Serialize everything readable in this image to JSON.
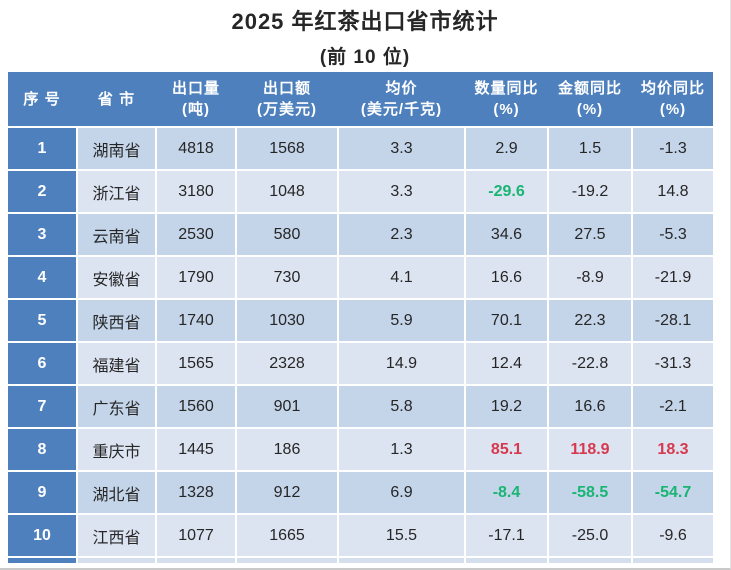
{
  "title": "2025 年红茶出口省市统计",
  "subtitle": "(前 10 位)",
  "colors": {
    "header_blue": "#4E80BD",
    "row_odd": "#C4D4E9",
    "row_even": "#DDE4F1",
    "text_dark": "#262626",
    "positive_red": "#D6394E",
    "negative_green": "#18B573"
  },
  "table": {
    "headers": [
      {
        "line1": "序 号",
        "line2": ""
      },
      {
        "line1": "省 市",
        "line2": ""
      },
      {
        "line1": "出口量",
        "line2": "(吨)"
      },
      {
        "line1": "出口额",
        "line2": "(万美元)"
      },
      {
        "line1": "均价",
        "line2": "(美元/千克)"
      },
      {
        "line1": "数量同比",
        "line2": "(%)"
      },
      {
        "line1": "金额同比",
        "line2": "(%)"
      },
      {
        "line1": "均价同比",
        "line2": "(%)"
      }
    ],
    "rows": [
      {
        "rank": "1",
        "province": "湖南省",
        "qty": "4818",
        "value": "1568",
        "avg": "3.3",
        "qty_yoy": "2.9",
        "value_yoy": "1.5",
        "avg_yoy": "-1.3",
        "highlights": {}
      },
      {
        "rank": "2",
        "province": "浙江省",
        "qty": "3180",
        "value": "1048",
        "avg": "3.3",
        "qty_yoy": "-29.6",
        "value_yoy": "-19.2",
        "avg_yoy": "14.8",
        "highlights": {
          "qty_yoy": "green"
        }
      },
      {
        "rank": "3",
        "province": "云南省",
        "qty": "2530",
        "value": "580",
        "avg": "2.3",
        "qty_yoy": "34.6",
        "value_yoy": "27.5",
        "avg_yoy": "-5.3",
        "highlights": {}
      },
      {
        "rank": "4",
        "province": "安徽省",
        "qty": "1790",
        "value": "730",
        "avg": "4.1",
        "qty_yoy": "16.6",
        "value_yoy": "-8.9",
        "avg_yoy": "-21.9",
        "highlights": {}
      },
      {
        "rank": "5",
        "province": "陕西省",
        "qty": "1740",
        "value": "1030",
        "avg": "5.9",
        "qty_yoy": "70.1",
        "value_yoy": "22.3",
        "avg_yoy": "-28.1",
        "highlights": {}
      },
      {
        "rank": "6",
        "province": "福建省",
        "qty": "1565",
        "value": "2328",
        "avg": "14.9",
        "qty_yoy": "12.4",
        "value_yoy": "-22.8",
        "avg_yoy": "-31.3",
        "highlights": {}
      },
      {
        "rank": "7",
        "province": "广东省",
        "qty": "1560",
        "value": "901",
        "avg": "5.8",
        "qty_yoy": "19.2",
        "value_yoy": "16.6",
        "avg_yoy": "-2.1",
        "highlights": {}
      },
      {
        "rank": "8",
        "province": "重庆市",
        "qty": "1445",
        "value": "186",
        "avg": "1.3",
        "qty_yoy": "85.1",
        "value_yoy": "118.9",
        "avg_yoy": "18.3",
        "highlights": {
          "qty_yoy": "red",
          "value_yoy": "red",
          "avg_yoy": "red"
        }
      },
      {
        "rank": "9",
        "province": "湖北省",
        "qty": "1328",
        "value": "912",
        "avg": "6.9",
        "qty_yoy": "-8.4",
        "value_yoy": "-58.5",
        "avg_yoy": "-54.7",
        "highlights": {
          "qty_yoy": "green",
          "value_yoy": "green",
          "avg_yoy": "green"
        }
      },
      {
        "rank": "10",
        "province": "江西省",
        "qty": "1077",
        "value": "1665",
        "avg": "15.5",
        "qty_yoy": "-17.1",
        "value_yoy": "-25.0",
        "avg_yoy": "-9.6",
        "highlights": {}
      }
    ]
  },
  "chart_data": {
    "type": "table",
    "title": "2025 年红茶出口省市统计",
    "subtitle": "(前 10 位)",
    "columns": [
      "序号",
      "省市",
      "出口量(吨)",
      "出口额(万美元)",
      "均价(美元/千克)",
      "数量同比(%)",
      "金额同比(%)",
      "均价同比(%)"
    ],
    "rows": [
      [
        1,
        "湖南省",
        4818,
        1568,
        3.3,
        2.9,
        1.5,
        -1.3
      ],
      [
        2,
        "浙江省",
        3180,
        1048,
        3.3,
        -29.6,
        -19.2,
        14.8
      ],
      [
        3,
        "云南省",
        2530,
        580,
        2.3,
        34.6,
        27.5,
        -5.3
      ],
      [
        4,
        "安徽省",
        1790,
        730,
        4.1,
        16.6,
        -8.9,
        -21.9
      ],
      [
        5,
        "陕西省",
        1740,
        1030,
        5.9,
        70.1,
        22.3,
        -28.1
      ],
      [
        6,
        "福建省",
        1565,
        2328,
        14.9,
        12.4,
        -22.8,
        -31.3
      ],
      [
        7,
        "广东省",
        1560,
        901,
        5.8,
        19.2,
        16.6,
        -2.1
      ],
      [
        8,
        "重庆市",
        1445,
        186,
        1.3,
        85.1,
        118.9,
        18.3
      ],
      [
        9,
        "湖北省",
        1328,
        912,
        6.9,
        -8.4,
        -58.5,
        -54.7
      ],
      [
        10,
        "江西省",
        1077,
        1665,
        15.5,
        -17.1,
        -25.0,
        -9.6
      ]
    ]
  }
}
